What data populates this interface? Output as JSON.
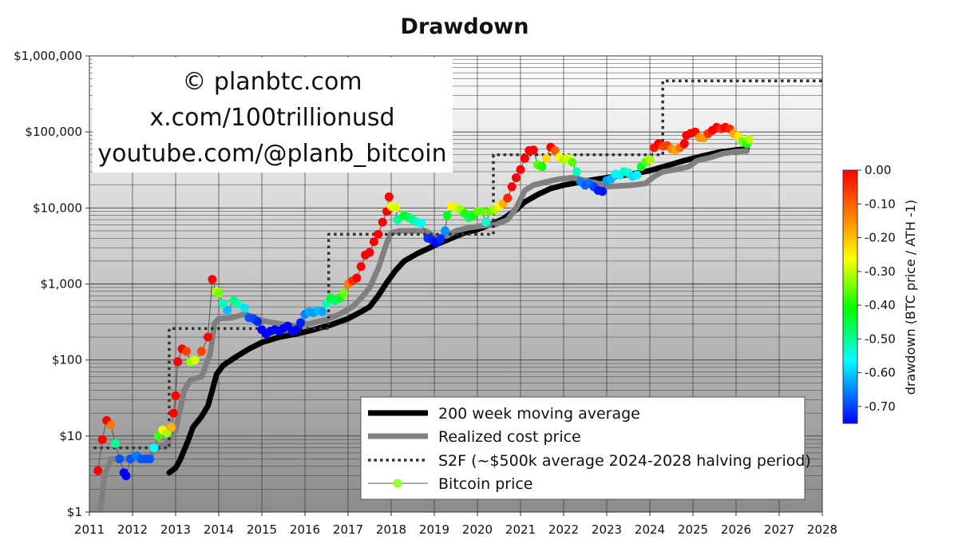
{
  "chart_data": {
    "type": "scatter",
    "title": "Drawdown",
    "xlim": [
      2011,
      2028
    ],
    "ylim": [
      1,
      1000000
    ],
    "yscale": "log",
    "x_ticks": [
      "2011",
      "2012",
      "2013",
      "2014",
      "2015",
      "2016",
      "2017",
      "2018",
      "2019",
      "2020",
      "2021",
      "2022",
      "2023",
      "2024",
      "2025",
      "2026",
      "2027",
      "2028"
    ],
    "y_ticks": [
      {
        "value": 1,
        "label": "$1"
      },
      {
        "value": 10,
        "label": "$10"
      },
      {
        "value": 100,
        "label": "$100"
      },
      {
        "value": 1000,
        "label": "$1,000"
      },
      {
        "value": 10000,
        "label": "$10,000"
      },
      {
        "value": 100000,
        "label": "$100,000"
      },
      {
        "value": 1000000,
        "label": "$1,000,000"
      }
    ],
    "grid": true,
    "watermark": [
      "© planbtc.com",
      "x.com/100trillionusd",
      "youtube.com/@planb_bitcoin"
    ],
    "legend": {
      "placement": "bottom-right",
      "entries": [
        "200 week moving average",
        "Realized cost price",
        "S2F (~$500k average 2024-2028 halving period)",
        "Bitcoin price"
      ]
    },
    "colorbar": {
      "label": "drawdown (BTC price / ATH  -1)",
      "range": [
        -0.75,
        0
      ],
      "ticks": [
        {
          "value": 0,
          "label": "0.00"
        },
        {
          "value": -0.1,
          "label": "-0.10"
        },
        {
          "value": -0.2,
          "label": "-0.20"
        },
        {
          "value": -0.3,
          "label": "-0.30"
        },
        {
          "value": -0.4,
          "label": "-0.40"
        },
        {
          "value": -0.5,
          "label": "-0.50"
        },
        {
          "value": -0.6,
          "label": "-0.60"
        },
        {
          "value": -0.7,
          "label": "-0.70"
        }
      ]
    },
    "series": [
      {
        "name": "200 week moving average",
        "color": "#000000",
        "points": [
          [
            2012.85,
            3.3
          ],
          [
            2013.0,
            3.8
          ],
          [
            2013.1,
            4.8
          ],
          [
            2013.3,
            9
          ],
          [
            2013.4,
            13
          ],
          [
            2013.6,
            18
          ],
          [
            2013.75,
            25
          ],
          [
            2013.85,
            40
          ],
          [
            2013.95,
            65
          ],
          [
            2014.1,
            85
          ],
          [
            2014.4,
            110
          ],
          [
            2014.7,
            140
          ],
          [
            2015.0,
            170
          ],
          [
            2015.4,
            200
          ],
          [
            2015.8,
            220
          ],
          [
            2016.2,
            250
          ],
          [
            2016.6,
            290
          ],
          [
            2017.0,
            350
          ],
          [
            2017.3,
            430
          ],
          [
            2017.5,
            500
          ],
          [
            2017.7,
            700
          ],
          [
            2017.9,
            1050
          ],
          [
            2018.1,
            1500
          ],
          [
            2018.3,
            2000
          ],
          [
            2018.6,
            2500
          ],
          [
            2018.9,
            3000
          ],
          [
            2019.1,
            3400
          ],
          [
            2019.4,
            4000
          ],
          [
            2019.7,
            4700
          ],
          [
            2020.0,
            5200
          ],
          [
            2020.3,
            6000
          ],
          [
            2020.6,
            7200
          ],
          [
            2020.9,
            9500
          ],
          [
            2021.1,
            12000
          ],
          [
            2021.4,
            15000
          ],
          [
            2021.7,
            18000
          ],
          [
            2022.0,
            20000
          ],
          [
            2022.4,
            22000
          ],
          [
            2022.8,
            24000
          ],
          [
            2023.2,
            26000
          ],
          [
            2023.6,
            28000
          ],
          [
            2024.0,
            31000
          ],
          [
            2024.4,
            36000
          ],
          [
            2024.8,
            42000
          ],
          [
            2025.2,
            48000
          ],
          [
            2025.6,
            54000
          ],
          [
            2026.0,
            58000
          ],
          [
            2026.25,
            60000
          ]
        ]
      },
      {
        "name": "Realized cost price",
        "color": "#808080",
        "points": [
          [
            2011.25,
            1
          ],
          [
            2011.35,
            3
          ],
          [
            2011.5,
            5
          ],
          [
            2011.8,
            5
          ],
          [
            2012.0,
            5
          ],
          [
            2012.3,
            5
          ],
          [
            2012.6,
            7
          ],
          [
            2012.8,
            8
          ],
          [
            2013.0,
            12
          ],
          [
            2013.2,
            40
          ],
          [
            2013.35,
            55
          ],
          [
            2013.6,
            60
          ],
          [
            2013.8,
            120
          ],
          [
            2013.9,
            300
          ],
          [
            2014.0,
            350
          ],
          [
            2014.3,
            360
          ],
          [
            2014.6,
            400
          ],
          [
            2014.8,
            370
          ],
          [
            2015.0,
            330
          ],
          [
            2015.4,
            300
          ],
          [
            2015.8,
            280
          ],
          [
            2016.1,
            300
          ],
          [
            2016.5,
            340
          ],
          [
            2016.8,
            400
          ],
          [
            2017.1,
            500
          ],
          [
            2017.3,
            650
          ],
          [
            2017.5,
            900
          ],
          [
            2017.7,
            1600
          ],
          [
            2017.9,
            3500
          ],
          [
            2018.0,
            4700
          ],
          [
            2018.2,
            5000
          ],
          [
            2018.5,
            5000
          ],
          [
            2018.8,
            5000
          ],
          [
            2019.0,
            4200
          ],
          [
            2019.3,
            4300
          ],
          [
            2019.5,
            5000
          ],
          [
            2019.8,
            5500
          ],
          [
            2020.1,
            5800
          ],
          [
            2020.4,
            6000
          ],
          [
            2020.7,
            7000
          ],
          [
            2020.9,
            10000
          ],
          [
            2021.1,
            17000
          ],
          [
            2021.3,
            20000
          ],
          [
            2021.6,
            22000
          ],
          [
            2021.9,
            24000
          ],
          [
            2022.2,
            25000
          ],
          [
            2022.5,
            23000
          ],
          [
            2022.8,
            21000
          ],
          [
            2023.0,
            19000
          ],
          [
            2023.3,
            19500
          ],
          [
            2023.6,
            20000
          ],
          [
            2023.9,
            21000
          ],
          [
            2024.1,
            26000
          ],
          [
            2024.3,
            30000
          ],
          [
            2024.6,
            32000
          ],
          [
            2024.9,
            35000
          ],
          [
            2025.1,
            42000
          ],
          [
            2025.4,
            46000
          ],
          [
            2025.7,
            52000
          ],
          [
            2026.0,
            55000
          ],
          [
            2026.25,
            56000
          ]
        ]
      },
      {
        "name": "S2F (~$500k average 2024-2028 halving period)",
        "color": "#333333",
        "points": [
          [
            2011.1,
            7
          ],
          [
            2012.85,
            7
          ],
          [
            2012.85,
            260
          ],
          [
            2016.55,
            260
          ],
          [
            2016.55,
            4500
          ],
          [
            2020.37,
            4500
          ],
          [
            2020.37,
            50000
          ],
          [
            2024.3,
            50000
          ],
          [
            2024.3,
            470000
          ],
          [
            2028,
            470000
          ]
        ]
      },
      {
        "name": "Bitcoin price",
        "color": "#555555",
        "points": [
          [
            2011.2,
            3.5
          ],
          [
            2011.3,
            9
          ],
          [
            2011.4,
            16
          ],
          [
            2011.5,
            14
          ],
          [
            2011.6,
            8
          ],
          [
            2011.7,
            5
          ],
          [
            2011.8,
            3.3
          ],
          [
            2011.85,
            3
          ],
          [
            2011.95,
            5
          ],
          [
            2012.1,
            5.5
          ],
          [
            2012.2,
            5
          ],
          [
            2012.3,
            5
          ],
          [
            2012.4,
            5
          ],
          [
            2012.5,
            7
          ],
          [
            2012.6,
            10
          ],
          [
            2012.7,
            12
          ],
          [
            2012.8,
            11
          ],
          [
            2012.9,
            13
          ],
          [
            2012.95,
            20
          ],
          [
            2013.0,
            34
          ],
          [
            2013.05,
            95
          ],
          [
            2013.15,
            140
          ],
          [
            2013.25,
            130
          ],
          [
            2013.35,
            95
          ],
          [
            2013.45,
            100
          ],
          [
            2013.6,
            130
          ],
          [
            2013.75,
            200
          ],
          [
            2013.85,
            1150
          ],
          [
            2013.95,
            800
          ],
          [
            2014.0,
            750
          ],
          [
            2014.1,
            550
          ],
          [
            2014.2,
            450
          ],
          [
            2014.35,
            600
          ],
          [
            2014.45,
            550
          ],
          [
            2014.6,
            480
          ],
          [
            2014.7,
            360
          ],
          [
            2014.8,
            350
          ],
          [
            2014.9,
            320
          ],
          [
            2015.0,
            250
          ],
          [
            2015.1,
            220
          ],
          [
            2015.2,
            240
          ],
          [
            2015.3,
            250
          ],
          [
            2015.4,
            240
          ],
          [
            2015.5,
            260
          ],
          [
            2015.6,
            280
          ],
          [
            2015.7,
            240
          ],
          [
            2015.8,
            250
          ],
          [
            2015.9,
            310
          ],
          [
            2016.0,
            400
          ],
          [
            2016.1,
            430
          ],
          [
            2016.2,
            420
          ],
          [
            2016.3,
            450
          ],
          [
            2016.4,
            430
          ],
          [
            2016.5,
            550
          ],
          [
            2016.6,
            650
          ],
          [
            2016.7,
            600
          ],
          [
            2016.8,
            650
          ],
          [
            2016.9,
            750
          ],
          [
            2017.0,
            1000
          ],
          [
            2017.1,
            1100
          ],
          [
            2017.2,
            1200
          ],
          [
            2017.3,
            1700
          ],
          [
            2017.4,
            2400
          ],
          [
            2017.5,
            2600
          ],
          [
            2017.6,
            3600
          ],
          [
            2017.7,
            4500
          ],
          [
            2017.8,
            6500
          ],
          [
            2017.9,
            9000
          ],
          [
            2017.95,
            14000
          ],
          [
            2018.0,
            10500
          ],
          [
            2018.1,
            10000
          ],
          [
            2018.15,
            7000
          ],
          [
            2018.3,
            8000
          ],
          [
            2018.4,
            7500
          ],
          [
            2018.5,
            7000
          ],
          [
            2018.6,
            6500
          ],
          [
            2018.7,
            6300
          ],
          [
            2018.85,
            4000
          ],
          [
            2018.95,
            3800
          ],
          [
            2019.05,
            3500
          ],
          [
            2019.15,
            3900
          ],
          [
            2019.25,
            5000
          ],
          [
            2019.3,
            8000
          ],
          [
            2019.4,
            10500
          ],
          [
            2019.5,
            10000
          ],
          [
            2019.6,
            9500
          ],
          [
            2019.7,
            8500
          ],
          [
            2019.8,
            7500
          ],
          [
            2019.9,
            8000
          ],
          [
            2020.0,
            9000
          ],
          [
            2020.1,
            9000
          ],
          [
            2020.2,
            6500
          ],
          [
            2020.3,
            9000
          ],
          [
            2020.4,
            9500
          ],
          [
            2020.5,
            10500
          ],
          [
            2020.6,
            11500
          ],
          [
            2020.7,
            13500
          ],
          [
            2020.8,
            19000
          ],
          [
            2020.9,
            25000
          ],
          [
            2021.0,
            32000
          ],
          [
            2021.1,
            45000
          ],
          [
            2021.2,
            57000
          ],
          [
            2021.3,
            58000
          ],
          [
            2021.4,
            37000
          ],
          [
            2021.5,
            35000
          ],
          [
            2021.6,
            45000
          ],
          [
            2021.7,
            63000
          ],
          [
            2021.8,
            57000
          ],
          [
            2021.9,
            47000
          ],
          [
            2022.0,
            43000
          ],
          [
            2022.1,
            45000
          ],
          [
            2022.2,
            40000
          ],
          [
            2022.3,
            30000
          ],
          [
            2022.4,
            22000
          ],
          [
            2022.5,
            20000
          ],
          [
            2022.6,
            21000
          ],
          [
            2022.7,
            19000
          ],
          [
            2022.8,
            17000
          ],
          [
            2022.9,
            16500
          ],
          [
            2023.0,
            23000
          ],
          [
            2023.1,
            24000
          ],
          [
            2023.2,
            28000
          ],
          [
            2023.3,
            27000
          ],
          [
            2023.4,
            30000
          ],
          [
            2023.5,
            29000
          ],
          [
            2023.6,
            26000
          ],
          [
            2023.7,
            27000
          ],
          [
            2023.8,
            35000
          ],
          [
            2023.9,
            40000
          ],
          [
            2024.0,
            43000
          ],
          [
            2024.1,
            62000
          ],
          [
            2024.2,
            70000
          ],
          [
            2024.3,
            65000
          ],
          [
            2024.4,
            66000
          ],
          [
            2024.5,
            60000
          ],
          [
            2024.6,
            58000
          ],
          [
            2024.7,
            62000
          ],
          [
            2024.8,
            70000
          ],
          [
            2024.85,
            90000
          ],
          [
            2024.95,
            96000
          ],
          [
            2025.05,
            100000
          ],
          [
            2025.15,
            85000
          ],
          [
            2025.25,
            84000
          ],
          [
            2025.35,
            95000
          ],
          [
            2025.45,
            105000
          ],
          [
            2025.55,
            115000
          ],
          [
            2025.65,
            110000
          ],
          [
            2025.75,
            115000
          ],
          [
            2025.85,
            110000
          ],
          [
            2025.95,
            95000
          ],
          [
            2026.05,
            88000
          ],
          [
            2026.15,
            75000
          ],
          [
            2026.25,
            70000
          ],
          [
            2026.3,
            80000
          ]
        ]
      }
    ]
  }
}
